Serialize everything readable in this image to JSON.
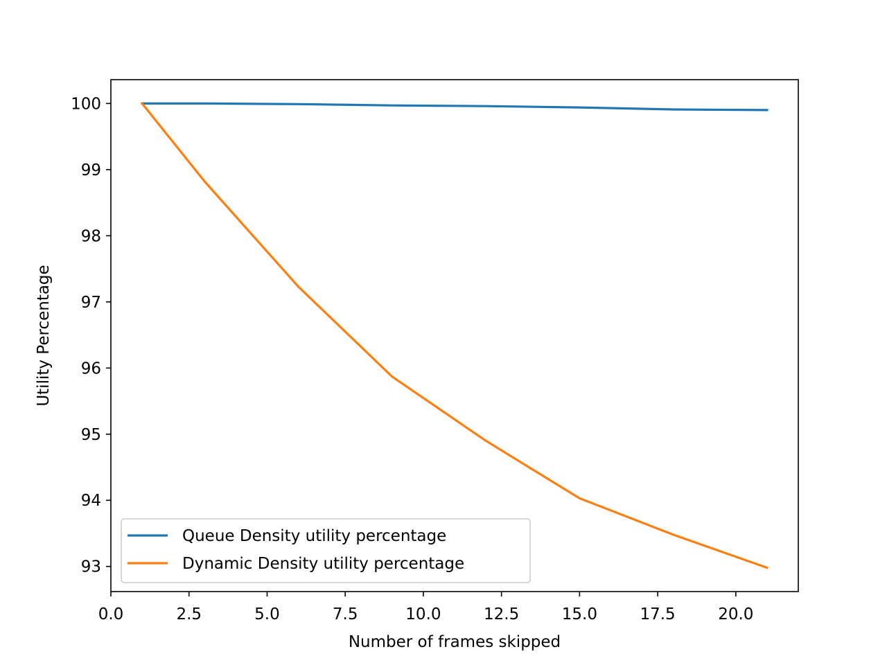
{
  "chart_data": {
    "type": "line",
    "title": "",
    "xlabel": "Number of frames skipped",
    "ylabel": "Utility Percentage",
    "xlim": [
      0,
      22
    ],
    "ylim": [
      92.62,
      100.36
    ],
    "x_ticks": [
      0.0,
      2.5,
      5.0,
      7.5,
      10.0,
      12.5,
      15.0,
      17.5,
      20.0
    ],
    "x_tick_labels": [
      "0.0",
      "2.5",
      "5.0",
      "7.5",
      "10.0",
      "12.5",
      "15.0",
      "17.5",
      "20.0"
    ],
    "y_ticks": [
      93,
      94,
      95,
      96,
      97,
      98,
      99,
      100
    ],
    "y_tick_labels": [
      "93",
      "94",
      "95",
      "96",
      "97",
      "98",
      "99",
      "100"
    ],
    "grid": false,
    "legend_position": "lower-left",
    "series": [
      {
        "name": "Queue Density utility percentage",
        "color": "#1f77b4",
        "x": [
          1,
          3,
          6,
          9,
          12,
          15,
          18,
          21
        ],
        "y": [
          100.0,
          100.0,
          99.99,
          99.97,
          99.96,
          99.94,
          99.91,
          99.9
        ]
      },
      {
        "name": "Dynamic Density utility percentage",
        "color": "#ff7f0e",
        "x": [
          1,
          3,
          6,
          9,
          12,
          15,
          18,
          21
        ],
        "y": [
          100.0,
          98.82,
          97.23,
          95.87,
          94.9,
          94.03,
          93.48,
          92.98
        ]
      }
    ]
  }
}
